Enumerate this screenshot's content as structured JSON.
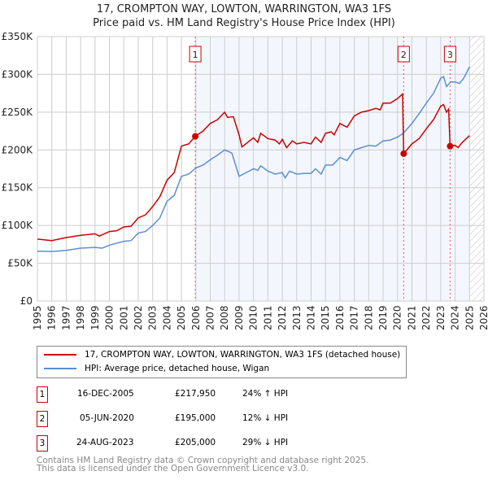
{
  "chart_data": {
    "type": "line",
    "title": "17, CROMPTON WAY, LOWTON, WARRINGTON, WA3 1FS",
    "subtitle": "Price paid vs. HM Land Registry's House Price Index (HPI)",
    "xlim": [
      1995,
      2026
    ],
    "ylim": [
      0,
      350000
    ],
    "x_ticks": [
      "1995",
      "1996",
      "1997",
      "1998",
      "1999",
      "2000",
      "2001",
      "2002",
      "2003",
      "2004",
      "2005",
      "2006",
      "2007",
      "2008",
      "2009",
      "2010",
      "2011",
      "2012",
      "2013",
      "2014",
      "2015",
      "2016",
      "2017",
      "2018",
      "2019",
      "2020",
      "2021",
      "2022",
      "2023",
      "2024",
      "2025",
      "2026"
    ],
    "y_ticks": [
      {
        "v": 0,
        "label": "£0"
      },
      {
        "v": 50000,
        "label": "£50K"
      },
      {
        "v": 100000,
        "label": "£100K"
      },
      {
        "v": 150000,
        "label": "£150K"
      },
      {
        "v": 200000,
        "label": "£200K"
      },
      {
        "v": 250000,
        "label": "£250K"
      },
      {
        "v": 300000,
        "label": "£300K"
      },
      {
        "v": 350000,
        "label": "£350K"
      }
    ],
    "grid": true,
    "series": [
      {
        "name": "17, CROMPTON WAY, LOWTON, WARRINGTON, WA3 1FS (detached house)",
        "color": "#cc0000",
        "points": [
          [
            1995,
            82
          ],
          [
            1996,
            80
          ],
          [
            1997,
            84
          ],
          [
            1998,
            87
          ],
          [
            1999,
            89
          ],
          [
            1999.3,
            86
          ],
          [
            2000,
            92
          ],
          [
            2000.5,
            93
          ],
          [
            2001,
            98
          ],
          [
            2001.5,
            99
          ],
          [
            2002,
            110
          ],
          [
            2002.5,
            114
          ],
          [
            2003,
            125
          ],
          [
            2003.5,
            138
          ],
          [
            2004,
            160
          ],
          [
            2004.5,
            170
          ],
          [
            2005,
            205
          ],
          [
            2005.5,
            208
          ],
          [
            2005.96,
            217.95
          ],
          [
            2006.5,
            225
          ],
          [
            2007,
            235
          ],
          [
            2007.5,
            240
          ],
          [
            2008,
            250
          ],
          [
            2008.2,
            243
          ],
          [
            2008.6,
            244
          ],
          [
            2009,
            220
          ],
          [
            2009.2,
            204
          ],
          [
            2010,
            216
          ],
          [
            2010.3,
            210
          ],
          [
            2010.5,
            222
          ],
          [
            2011,
            215
          ],
          [
            2011.5,
            213
          ],
          [
            2011.8,
            208
          ],
          [
            2012,
            214
          ],
          [
            2012.3,
            203
          ],
          [
            2012.7,
            212
          ],
          [
            2013,
            208
          ],
          [
            2013.5,
            210
          ],
          [
            2014,
            208
          ],
          [
            2014.3,
            217
          ],
          [
            2014.7,
            210
          ],
          [
            2015,
            222
          ],
          [
            2015.4,
            224
          ],
          [
            2015.6,
            220
          ],
          [
            2016,
            235
          ],
          [
            2016.5,
            230
          ],
          [
            2017,
            245
          ],
          [
            2017.5,
            250
          ],
          [
            2018,
            252
          ],
          [
            2018.5,
            255
          ],
          [
            2018.8,
            253
          ],
          [
            2019,
            262
          ],
          [
            2019.5,
            262
          ],
          [
            2020,
            268
          ],
          [
            2020.35,
            274
          ],
          [
            2020.43,
            195
          ],
          [
            2021,
            208
          ],
          [
            2021.5,
            215
          ],
          [
            2022,
            228
          ],
          [
            2022.5,
            240
          ],
          [
            2023,
            258
          ],
          [
            2023.2,
            260
          ],
          [
            2023.4,
            250
          ],
          [
            2023.55,
            254
          ],
          [
            2023.65,
            205
          ],
          [
            2024,
            206
          ],
          [
            2024.2,
            203
          ],
          [
            2024.5,
            210
          ],
          [
            2025,
            219
          ]
        ]
      },
      {
        "name": "HPI: Average price, detached house, Wigan",
        "color": "#5b8fd4",
        "points": [
          [
            1995,
            66
          ],
          [
            1996,
            65.5
          ],
          [
            1997,
            67
          ],
          [
            1998,
            70
          ],
          [
            1999,
            71
          ],
          [
            1999.5,
            70
          ],
          [
            2000,
            74
          ],
          [
            2001,
            79
          ],
          [
            2001.5,
            80
          ],
          [
            2002,
            90
          ],
          [
            2002.5,
            92
          ],
          [
            2003,
            100
          ],
          [
            2003.5,
            110
          ],
          [
            2004,
            132
          ],
          [
            2004.5,
            140
          ],
          [
            2005,
            165
          ],
          [
            2005.5,
            168
          ],
          [
            2006,
            176
          ],
          [
            2006.5,
            180
          ],
          [
            2007,
            187
          ],
          [
            2007.5,
            193
          ],
          [
            2008,
            200
          ],
          [
            2008.5,
            196
          ],
          [
            2009,
            165
          ],
          [
            2009.5,
            170
          ],
          [
            2010,
            175
          ],
          [
            2010.3,
            173
          ],
          [
            2010.5,
            179
          ],
          [
            2011,
            172
          ],
          [
            2011.5,
            168
          ],
          [
            2012,
            170
          ],
          [
            2012.2,
            163
          ],
          [
            2012.5,
            172
          ],
          [
            2013,
            168
          ],
          [
            2013.5,
            169
          ],
          [
            2014,
            169
          ],
          [
            2014.3,
            175
          ],
          [
            2014.7,
            168
          ],
          [
            2015,
            180
          ],
          [
            2015.5,
            180
          ],
          [
            2016,
            190
          ],
          [
            2016.5,
            186
          ],
          [
            2017,
            200
          ],
          [
            2017.5,
            203
          ],
          [
            2018,
            206
          ],
          [
            2018.5,
            205
          ],
          [
            2019,
            212
          ],
          [
            2019.5,
            213
          ],
          [
            2020,
            217
          ],
          [
            2020.4,
            222
          ],
          [
            2021,
            235
          ],
          [
            2021.5,
            248
          ],
          [
            2022,
            262
          ],
          [
            2022.5,
            275
          ],
          [
            2023,
            295
          ],
          [
            2023.2,
            297
          ],
          [
            2023.4,
            284
          ],
          [
            2023.7,
            290
          ],
          [
            2024,
            290
          ],
          [
            2024.3,
            288
          ],
          [
            2024.6,
            295
          ],
          [
            2025,
            310
          ]
        ]
      }
    ],
    "sales": [
      {
        "n": "1",
        "x": 2005.96,
        "y": 217.95,
        "date": "16-DEC-2005",
        "price": "£217,950",
        "hpi": "24% ↑ HPI"
      },
      {
        "n": "2",
        "x": 2020.43,
        "y": 195,
        "date": "05-JUN-2020",
        "price": "£195,000",
        "hpi": "12% ↓ HPI"
      },
      {
        "n": "3",
        "x": 2023.65,
        "y": 205,
        "date": "24-AUG-2023",
        "price": "£205,000",
        "hpi": "29% ↓ HPI"
      }
    ],
    "data_end": 2025
  },
  "footer": {
    "line1": "Contains HM Land Registry data © Crown copyright and database right 2025.",
    "line2": "This data is licensed under the Open Government Licence v3.0."
  }
}
